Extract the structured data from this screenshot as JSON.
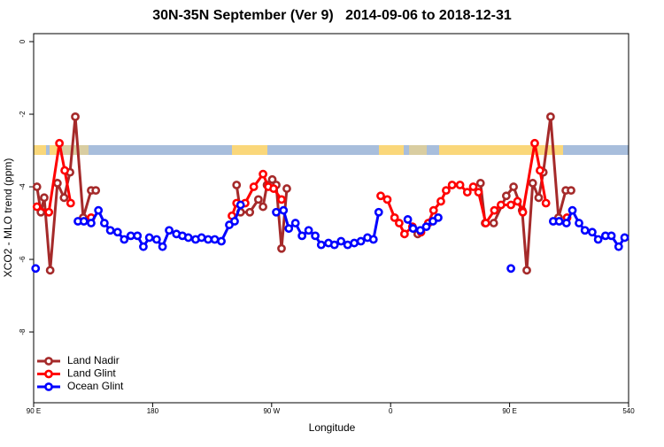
{
  "chart_data": {
    "type": "line",
    "title": "30N-35N September (Ver 9)   2014-09-06 to 2018-12-31",
    "xlabel": "Longitude",
    "ylabel": "XCO2 - MLO trend (ppm)",
    "xlim": [
      90,
      540
    ],
    "xticks": [
      {
        "value": 90,
        "label": "90 E"
      },
      180,
      {
        "value": 270,
        "label": "90 W"
      },
      {
        "value": 360,
        "label": "0"
      },
      {
        "value": 450,
        "label": "90 E"
      },
      540
    ],
    "ylim": [
      -9.95,
      0.22
    ],
    "yticks": [
      0,
      -2,
      -4,
      -6,
      -8
    ],
    "legend": "bottom-left",
    "series": [
      {
        "name": "Land Nadir",
        "color": "#a52a2a",
        "x": [
          92.5,
          95.5,
          98,
          102.5,
          108,
          113,
          117.5,
          121.5,
          127.5,
          133.5,
          137,
          null,
          243.5,
          246.5,
          253.5,
          260,
          263.5,
          266.5,
          270.5,
          273.5,
          277.5,
          281.5,
          null,
          380.5,
          null,
          428,
          431.5,
          438,
          447.5,
          453,
          459.5,
          463,
          467.5,
          472,
          475.5,
          481,
          487,
          492.5,
          496.5
        ],
        "values": [
          -4.0,
          -4.7,
          -4.3,
          -6.3,
          -3.9,
          -4.3,
          -3.6,
          -2.07,
          -4.85,
          -4.1,
          -4.1,
          null,
          -3.95,
          -4.7,
          -4.7,
          -4.35,
          -4.55,
          -3.95,
          -3.8,
          -3.95,
          -5.7,
          -4.05,
          null,
          -5.3,
          null,
          -3.9,
          -5.0,
          -5.0,
          -4.25,
          -4.0,
          -4.65,
          -6.3,
          -3.9,
          -4.3,
          -3.6,
          -2.07,
          -4.85,
          -4.1,
          -4.1
        ]
      },
      {
        "name": "Land Glint",
        "color": "#ff0000",
        "x": [
          92.5,
          101.5,
          109.5,
          113.5,
          118,
          null,
          133.5,
          null,
          240,
          243.5,
          250,
          256.5,
          263.5,
          267.5,
          271.5,
          277.5,
          null,
          352.5,
          357.5,
          363,
          366.5,
          370.5,
          376.5,
          383,
          388.5,
          392.5,
          398,
          402,
          406.5,
          412.5,
          418,
          422.5,
          426.5,
          432,
          438.5,
          443.5,
          451,
          456,
          460,
          469,
          473,
          477.5,
          null,
          493.5
        ],
        "values": [
          -4.55,
          -4.7,
          -2.8,
          -3.55,
          -4.45,
          null,
          -4.85,
          null,
          -4.8,
          -4.45,
          -4.45,
          -4.0,
          -3.65,
          -4.0,
          -4.05,
          -4.35,
          null,
          -4.25,
          -4.35,
          -4.85,
          -5.0,
          -5.3,
          -5.1,
          -5.25,
          -5.0,
          -4.65,
          -4.4,
          -4.1,
          -3.95,
          -3.95,
          -4.15,
          -4.0,
          -4.15,
          -5.0,
          -4.65,
          -4.5,
          -4.5,
          -4.4,
          -4.7,
          -2.8,
          -3.55,
          -4.45,
          null,
          -4.85
        ]
      },
      {
        "name": "Ocean Glint",
        "color": "#0000ff",
        "x": [
          91.5,
          null,
          123.5,
          128,
          133.5,
          139,
          143.5,
          148,
          153.5,
          158.5,
          163.5,
          168.5,
          173,
          177.5,
          183,
          187.5,
          192.5,
          198,
          202.5,
          207,
          212.5,
          217,
          222,
          227,
          232,
          238,
          242,
          246.5,
          null,
          273.5,
          279,
          283,
          288,
          293,
          298,
          303,
          307.5,
          313,
          317.5,
          322.5,
          327.5,
          332.5,
          337.5,
          342.5,
          347,
          351,
          null,
          373,
          377,
          382.5,
          387,
          392,
          396,
          null,
          451,
          null,
          483,
          487.5,
          493,
          497.5,
          502.5,
          507,
          512.5,
          517,
          522.5,
          527,
          532.5,
          537
        ],
        "values": [
          -6.25,
          null,
          -4.95,
          -4.95,
          -5.0,
          -4.65,
          -5.0,
          -5.2,
          -5.25,
          -5.45,
          -5.35,
          -5.35,
          -5.65,
          -5.4,
          -5.45,
          -5.65,
          -5.2,
          -5.3,
          -5.35,
          -5.4,
          -5.45,
          -5.4,
          -5.45,
          -5.45,
          -5.5,
          -5.05,
          -4.95,
          -4.5,
          null,
          -4.7,
          -4.65,
          -5.15,
          -5.0,
          -5.35,
          -5.2,
          -5.35,
          -5.6,
          -5.55,
          -5.6,
          -5.5,
          -5.6,
          -5.55,
          -5.5,
          -5.4,
          -5.45,
          -4.7,
          null,
          -4.9,
          -5.15,
          -5.2,
          -5.1,
          -4.95,
          -4.85,
          null,
          -6.25,
          null,
          -4.95,
          -4.95,
          -5.0,
          -4.65,
          -5.0,
          -5.2,
          -5.25,
          -5.45,
          -5.35,
          -5.35,
          -5.65,
          -5.4
        ]
      }
    ]
  }
}
